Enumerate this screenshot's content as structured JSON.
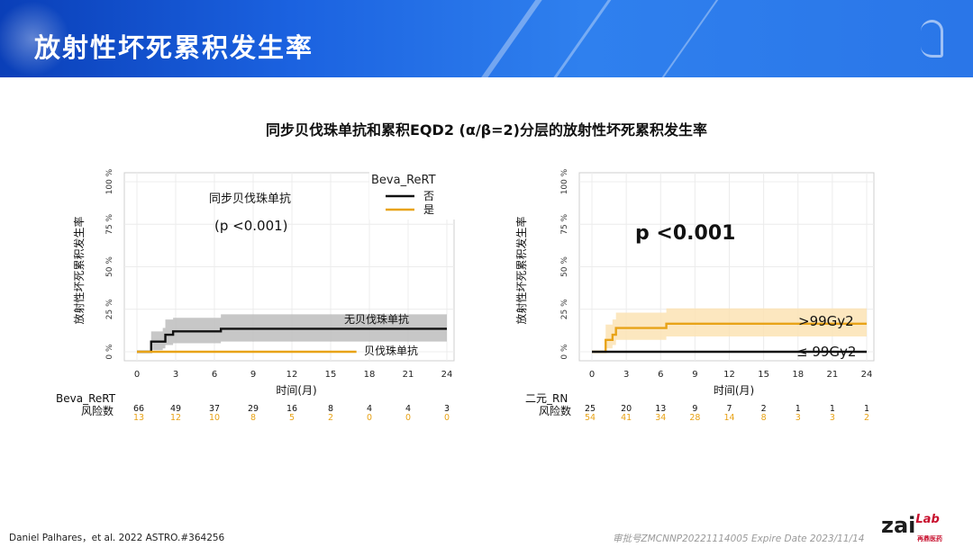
{
  "header": {
    "title": "放射性坏死累积发生率"
  },
  "subtitle": "同步贝伐珠单抗和累积EQD2 (α/β=2)分层的放射性坏死累积发生率",
  "footer": {
    "citation": "Daniel Palhares，et al. 2022 ASTRO.#364256",
    "approval": "审批号ZMCNNP20221114005 Expire Date 2023/11/14",
    "logo_main": "zai",
    "logo_sub": "Lab",
    "logo_cn": "再鼎医药"
  },
  "colors": {
    "black": "#111111",
    "orange": "#e8a317",
    "gray_band": "#bdbdbd",
    "orange_band": "#fbe3b4",
    "header_blue": "#1b62e0"
  },
  "chart_data": [
    {
      "type": "line",
      "step": true,
      "ylabel": "放射性坏死累积发生率",
      "xlabel": "时间(月)",
      "x_ticks": [
        0,
        3,
        6,
        9,
        12,
        15,
        18,
        21,
        24
      ],
      "y_ticks": [
        "0 %",
        "25 %",
        "50 %",
        "75 %",
        "100 %"
      ],
      "xlim": [
        0,
        24
      ],
      "ylim": [
        0,
        100
      ],
      "grid": true,
      "legend_title": "Beva_ReRT",
      "legend_position": "top-right",
      "legend": [
        "否",
        "是"
      ],
      "annotations": [
        "同步贝伐珠单抗",
        "(p <0.001)",
        "无贝伐珠单抗",
        "贝伐珠单抗"
      ],
      "series": [
        {
          "name": "否",
          "color": "#111111",
          "x": [
            0,
            1.0,
            1.1,
            2.0,
            2.2,
            2.8,
            6.5,
            24
          ],
          "y": [
            0,
            0,
            6,
            6,
            10,
            12,
            13.5,
            13.5
          ],
          "ci_upper": [
            0,
            0,
            12,
            14,
            19,
            20,
            22,
            22
          ],
          "ci_lower": [
            0,
            0,
            1,
            2,
            4,
            5,
            6,
            6
          ]
        },
        {
          "name": "是",
          "color": "#e8a317",
          "x": [
            0,
            17
          ],
          "y": [
            0,
            0
          ]
        }
      ],
      "risk_table": {
        "title": "Beva_ReRT",
        "label": "风险数",
        "rows": [
          {
            "color": "#111111",
            "values": [
              "66",
              "49",
              "37",
              "29",
              "16",
              "8",
              "4",
              "4",
              "3"
            ]
          },
          {
            "color": "#e8a317",
            "values": [
              "13",
              "12",
              "10",
              "8",
              "5",
              "2",
              "0",
              "0",
              "0"
            ]
          }
        ]
      }
    },
    {
      "type": "line",
      "step": true,
      "ylabel": "放射性坏死累积发生率",
      "xlabel": "时间(月)",
      "x_ticks": [
        0,
        3,
        6,
        9,
        12,
        15,
        18,
        21,
        24
      ],
      "y_ticks": [
        "0 %",
        "25 %",
        "50 %",
        "75 %",
        "100 %"
      ],
      "xlim": [
        0,
        24
      ],
      "ylim": [
        0,
        100
      ],
      "grid": true,
      "annotations": [
        "p <0.001",
        ">99Gy2",
        "≤ 99Gy2"
      ],
      "series": [
        {
          "name": ">99Gy2",
          "color": "#e8a317",
          "x": [
            0,
            1.0,
            1.2,
            1.8,
            2.1,
            6.5,
            24
          ],
          "y": [
            0,
            0,
            7,
            10,
            14,
            16.5,
            16.5
          ],
          "ci_upper": [
            0,
            0,
            16,
            19,
            23,
            25.5,
            25.5
          ],
          "ci_lower": [
            0,
            0,
            2,
            4,
            7,
            9,
            9
          ]
        },
        {
          "name": "≤ 99Gy2",
          "color": "#111111",
          "x": [
            0,
            24
          ],
          "y": [
            0,
            0
          ]
        }
      ],
      "risk_table": {
        "title": "二元_RN",
        "label": "风险数",
        "rows": [
          {
            "color": "#111111",
            "values": [
              "25",
              "20",
              "13",
              "9",
              "7",
              "2",
              "1",
              "1",
              "1"
            ]
          },
          {
            "color": "#e8a317",
            "values": [
              "54",
              "41",
              "34",
              "28",
              "14",
              "8",
              "3",
              "3",
              "2"
            ]
          }
        ]
      }
    }
  ]
}
